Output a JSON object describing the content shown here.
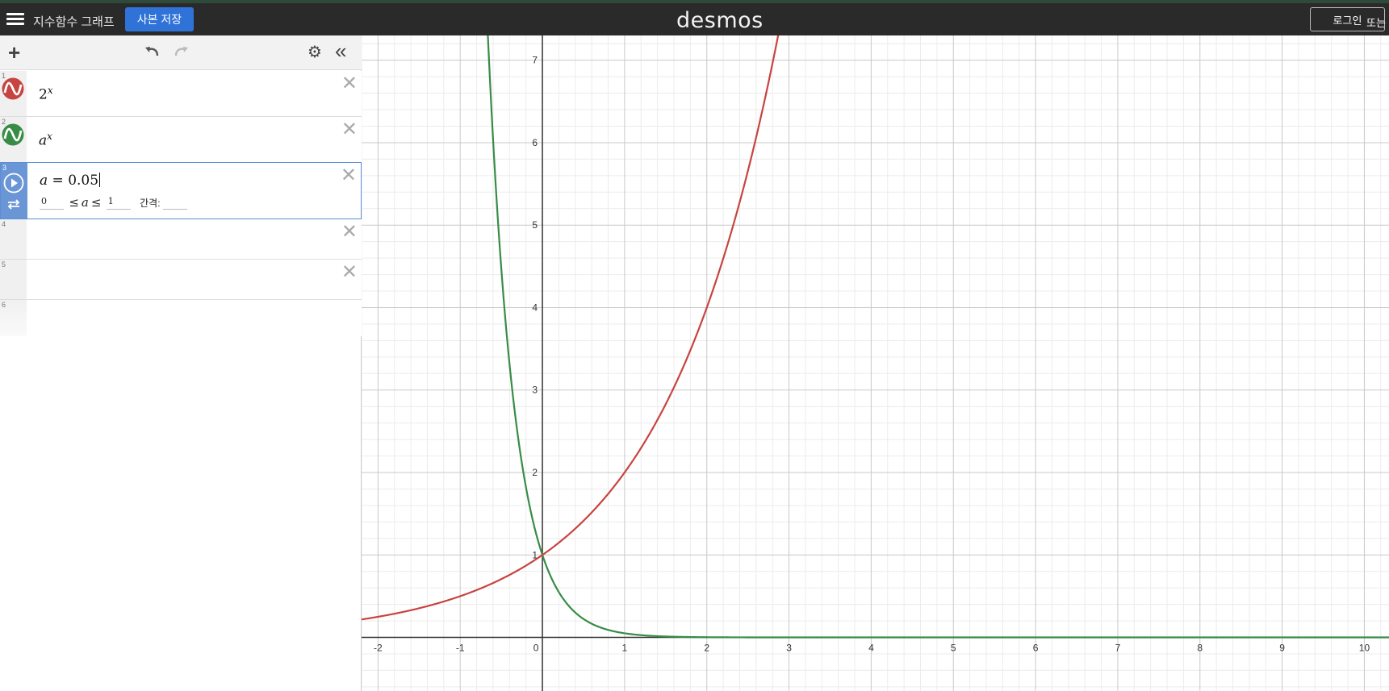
{
  "header": {
    "graph_title": "지수함수 그래프",
    "save_button": "사본 저장",
    "logo": "desmos",
    "login_button": "로그인",
    "or_text": "또는"
  },
  "expressions": [
    {
      "index": "1",
      "base": "2",
      "exponent": "x",
      "color": "#c74440"
    },
    {
      "index": "2",
      "base": "a",
      "exponent": "x",
      "color": "#388c46"
    },
    {
      "index": "3",
      "variable": "a",
      "equals": "=",
      "value": "0.05",
      "slider_min": "0",
      "slider_max": "1",
      "le": "≤",
      "step_label": "간격:",
      "step_value": ""
    },
    {
      "index": "4"
    },
    {
      "index": "5"
    },
    {
      "index": "6"
    }
  ],
  "graph": {
    "x_ticks": [
      "-2",
      "-1",
      "0",
      "1",
      "2",
      "3",
      "4",
      "5",
      "6",
      "7",
      "8",
      "9",
      "10"
    ],
    "y_ticks": [
      "1",
      "2",
      "3",
      "4",
      "5",
      "6",
      "7"
    ],
    "x_range": [
      -2.2,
      10.3
    ],
    "y_range": [
      -0.65,
      7.3
    ],
    "curve1_color": "#c74440",
    "curve2_color": "#388c46",
    "curve1_base": 2,
    "curve2_base": 0.05
  }
}
